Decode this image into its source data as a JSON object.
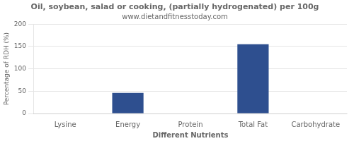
{
  "chart_data": {
    "type": "bar",
    "title": "Oil, soybean, salad or cooking, (partially hydrogenated) per 100g",
    "subtitle": "www.dietandfitnesstoday.com",
    "xlabel": "Different Nutrients",
    "ylabel": "Percentage of RDH (%)",
    "categories": [
      "Lysine",
      "Energy",
      "Protein",
      "Total Fat",
      "Carbohydrate"
    ],
    "values": [
      0,
      46,
      0,
      155,
      0
    ],
    "color": "#2e4f8f",
    "ylim": [
      0,
      200
    ],
    "yticks": [
      0,
      50,
      100,
      150,
      200
    ],
    "grid": true
  }
}
